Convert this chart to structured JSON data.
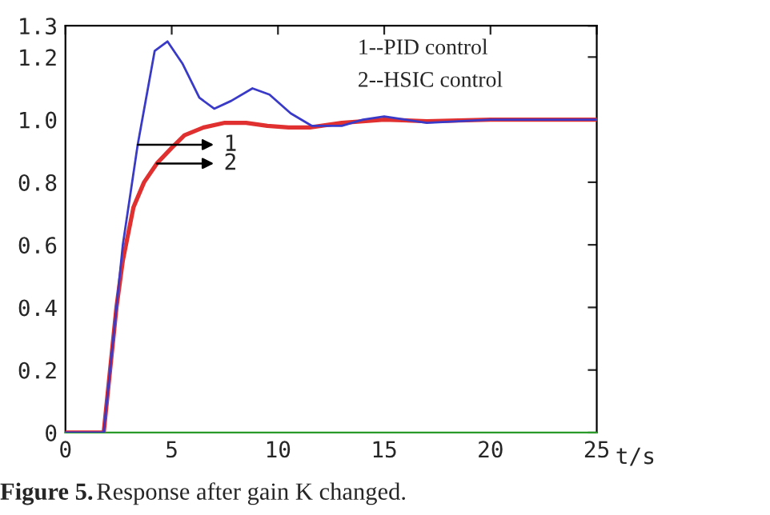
{
  "chart_data": {
    "type": "line",
    "xlabel": "t/s",
    "xlim": [
      0,
      25
    ],
    "xticks": [
      0,
      5,
      10,
      15,
      20,
      25
    ],
    "ylim": [
      0,
      1.3
    ],
    "yticks": [
      0,
      0.2,
      0.4,
      0.6,
      0.8,
      {
        "value": 1.0,
        "label": "1.0"
      },
      1.2,
      1.3
    ],
    "grid": false,
    "legend": false,
    "marker": "none",
    "line_style": "solid",
    "series": [
      {
        "color": "#3a3ac8",
        "x": [
          0,
          1.8,
          2.7,
          3.4,
          4.2,
          4.8,
          5.5,
          6.3,
          7.0,
          7.8,
          8.8,
          9.6,
          10.6,
          11.6,
          13.0,
          14.0,
          15.0,
          16.0,
          17.0,
          18.5,
          20.0,
          22.0,
          25.0
        ],
        "values": [
          0,
          0,
          0.6,
          0.92,
          1.22,
          1.25,
          1.18,
          1.07,
          1.035,
          1.06,
          1.1,
          1.08,
          1.02,
          0.98,
          0.98,
          1.0,
          1.01,
          1.0,
          0.99,
          0.995,
          1.0,
          1.0,
          1.0
        ]
      },
      {
        "color": "#e03030",
        "x": [
          0,
          1.8,
          2.4,
          2.7,
          3.2,
          3.7,
          4.3,
          5.0,
          5.6,
          6.5,
          7.5,
          8.5,
          9.5,
          10.5,
          11.5,
          13.0,
          15.0,
          17.0,
          20.0,
          25.0
        ],
        "values": [
          0,
          0,
          0.4,
          0.55,
          0.72,
          0.8,
          0.86,
          0.91,
          0.95,
          0.975,
          0.99,
          0.99,
          0.98,
          0.975,
          0.975,
          0.99,
          1.0,
          0.995,
          1.0,
          1.0
        ]
      }
    ],
    "annotations": [
      "1--PID control",
      "2--HSIC control",
      {
        "text": "1",
        "x": 3.4,
        "y": 0.92
      },
      {
        "text": "2",
        "x": 4.3,
        "y": 0.86
      },
      "Figure 5.",
      "Response after gain K changed."
    ]
  }
}
